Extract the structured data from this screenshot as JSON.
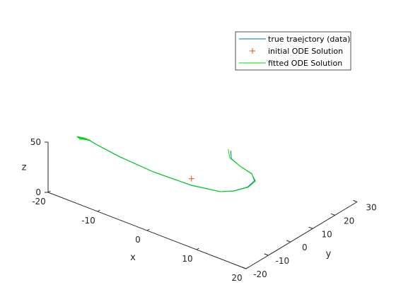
{
  "chart_data": {
    "type": "line",
    "title": "",
    "xlabel": "x",
    "ylabel": "y",
    "zlabel": "z",
    "xlim": [
      -20,
      20
    ],
    "ylim": [
      -20,
      30
    ],
    "zlim": [
      0,
      50
    ],
    "x_ticks": [
      "-20",
      "-10",
      "0",
      "10",
      "20"
    ],
    "y_ticks": [
      "-20",
      "-10",
      "0",
      "10",
      "20",
      "30"
    ],
    "z_ticks": [
      "0",
      "50"
    ],
    "grid": false,
    "legend_position": "top-right",
    "colors": {
      "true": "#0072BD",
      "initial": "#D95319",
      "fitted": "#00DD00",
      "axis": "#262626"
    },
    "series": [
      {
        "name": "true traejctory (data)",
        "marker": "line",
        "points": [
          [
            -3.5,
            25.5,
            12.0
          ],
          [
            -2.5,
            23.5,
            9.0
          ],
          [
            0.0,
            22.0,
            8.0
          ],
          [
            3.2,
            20.0,
            9.5
          ],
          [
            6.0,
            15.0,
            14.5
          ],
          [
            7.8,
            8.0,
            21.0
          ],
          [
            8.5,
            0.0,
            29.0
          ],
          [
            8.0,
            -5.0,
            34.0
          ],
          [
            4.0,
            -9.0,
            38.0
          ],
          [
            -3.0,
            -10.5,
            40.0
          ],
          [
            -10.0,
            -10.0,
            41.0
          ],
          [
            -15.0,
            -9.0,
            42.0
          ],
          [
            -17.0,
            -8.8,
            43.5
          ],
          [
            -17.5,
            -10.5,
            45.5
          ],
          [
            -17.5,
            -11.5,
            47.0
          ],
          [
            -18.3,
            -10.7,
            46.3
          ],
          [
            -17.5,
            -9.0,
            44.0
          ],
          [
            -16.5,
            -8.8,
            43.4
          ],
          [
            -17.2,
            -10.6,
            45.8
          ],
          [
            -17.4,
            -11.4,
            46.8
          ],
          [
            -18.0,
            -10.5,
            46.0
          ],
          [
            -17.3,
            -9.2,
            44.2
          ]
        ]
      },
      {
        "name": "initial ODE Solution",
        "marker": "+",
        "points": [
          [
            0.0,
            0.0,
            25.0
          ]
        ]
      },
      {
        "name": "fitted ODE Solution",
        "marker": "line",
        "points": [
          [
            -4.0,
            25.5,
            12.5
          ],
          [
            -2.8,
            23.5,
            9.2
          ],
          [
            0.0,
            22.0,
            8.0
          ],
          [
            3.3,
            19.8,
            9.6
          ],
          [
            6.2,
            15.0,
            14.5
          ],
          [
            7.9,
            8.0,
            21.0
          ],
          [
            8.6,
            0.0,
            29.0
          ],
          [
            8.1,
            -5.0,
            34.2
          ],
          [
            4.0,
            -9.0,
            38.2
          ],
          [
            -3.0,
            -10.5,
            40.2
          ],
          [
            -10.0,
            -10.0,
            41.2
          ],
          [
            -15.0,
            -9.0,
            42.2
          ],
          [
            -17.0,
            -8.8,
            43.7
          ],
          [
            -17.5,
            -10.5,
            45.6
          ],
          [
            -17.5,
            -11.5,
            47.1
          ],
          [
            -18.3,
            -10.7,
            46.4
          ],
          [
            -17.5,
            -9.0,
            44.1
          ],
          [
            -16.6,
            -8.8,
            43.5
          ],
          [
            -17.2,
            -10.6,
            45.9
          ],
          [
            -17.4,
            -11.4,
            46.9
          ],
          [
            -18.0,
            -10.5,
            46.1
          ],
          [
            -17.3,
            -9.2,
            44.3
          ]
        ]
      }
    ]
  }
}
